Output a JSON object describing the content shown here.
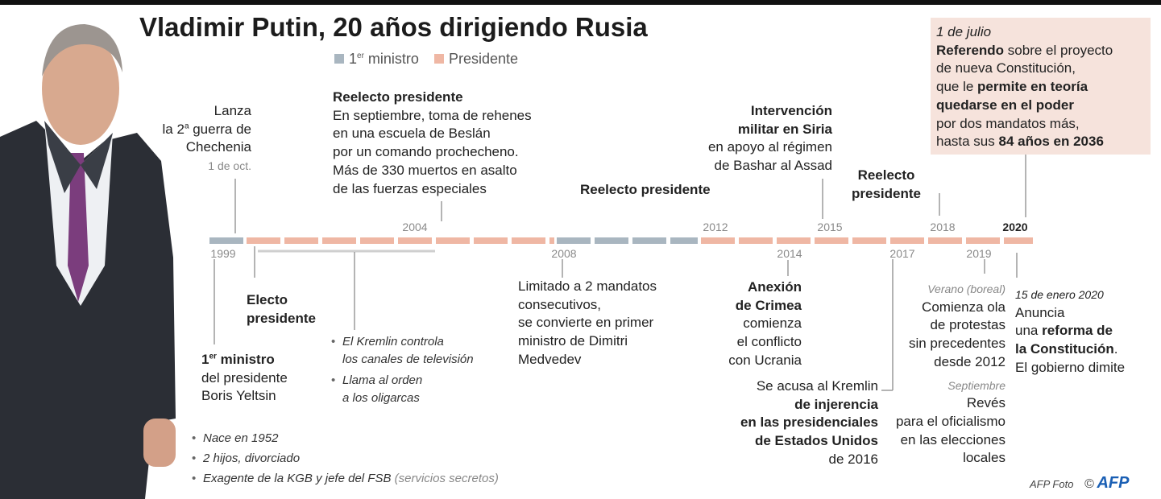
{
  "header": {
    "title": "Vladimir Putin, 20 años dirigiendo Rusia",
    "legend": [
      [
        "1",
        "er",
        " ministro"
      ],
      "Presidente"
    ]
  },
  "timeline": {
    "years": [
      "1999",
      "2004",
      "2008",
      "2012",
      "2014",
      "2015",
      "2017",
      "2018",
      "2019",
      "2020"
    ]
  },
  "events": [
    {
      "lines": [
        "Lanza",
        [
          "la 2",
          "a",
          " guerra de"
        ],
        "Chechenia"
      ],
      "date": "1 de oct."
    },
    {
      "title": "Reelecto presidente",
      "lines": [
        "En septiembre, toma de rehenes",
        "en una escuela de Beslán",
        "por un comando prochecheno.",
        "Más de 330 muertos en asalto",
        "de las fuerzas especiales"
      ]
    },
    {
      "title": "Reelecto presidente"
    },
    {
      "title": [
        "Intervención",
        "militar en Siria"
      ],
      "lines": [
        "en apoyo al régimen",
        "de Bashar al Assad"
      ]
    },
    {
      "title": [
        "Reelecto",
        "presidente"
      ]
    },
    {
      "date": "1 de julio",
      "lines": [
        [
          "Referendo",
          " sobre el proyecto"
        ],
        "de nueva Constitución,",
        [
          "que le ",
          "permite en teoría"
        ],
        "quedarse en el poder",
        "por dos mandatos más,",
        [
          "hasta sus ",
          "84 años en 2036"
        ]
      ]
    },
    {
      "title": [
        "Electo",
        "presidente"
      ]
    },
    {
      "title": [
        "1",
        "er",
        " ministro"
      ],
      "lines": [
        "del presidente",
        "Boris Yeltsin"
      ]
    },
    {
      "bullets": [
        [
          "El Kremlin controla",
          "los canales de televisión"
        ],
        [
          "Llama al orden",
          "a los oligarcas"
        ]
      ]
    },
    {
      "lines": [
        "Limitado a 2 mandatos",
        "consecutivos,",
        "se convierte en primer",
        "ministro de Dimitri",
        "Medvedev"
      ]
    },
    {
      "title": [
        "Anexión",
        "de Crimea"
      ],
      "lines": [
        "comienza",
        "el conflicto",
        "con Ucrania"
      ]
    },
    {
      "lines": [
        "Se acusa al Kremlin",
        "de injerencia",
        "en las presidenciales",
        "de Estados Unidos",
        "de 2016"
      ]
    },
    {
      "parts": [
        {
          "date": "Verano (boreal)",
          "lines": [
            "Comienza ola",
            "de protestas",
            "sin precedentes",
            "desde 2012"
          ]
        },
        {
          "date": "Septiembre",
          "lines": [
            "Revés",
            "para el oficialismo",
            "en las elecciones",
            "locales"
          ]
        }
      ]
    },
    {
      "date": "15 de enero 2020",
      "lines": [
        "Anuncia",
        [
          "una ",
          "reforma de"
        ],
        [
          "la Constitución",
          "."
        ],
        "El gobierno dimite"
      ]
    }
  ],
  "bio": {
    "bullets": [
      "Nace en 1952",
      "2 hijos, divorciado",
      [
        "Exagente de la KGB y jefe del FSB",
        " (servicios secretos)"
      ]
    ]
  },
  "credit": {
    "photo": "AFP Foto",
    "copyright": "©",
    "logo": "AFP"
  }
}
